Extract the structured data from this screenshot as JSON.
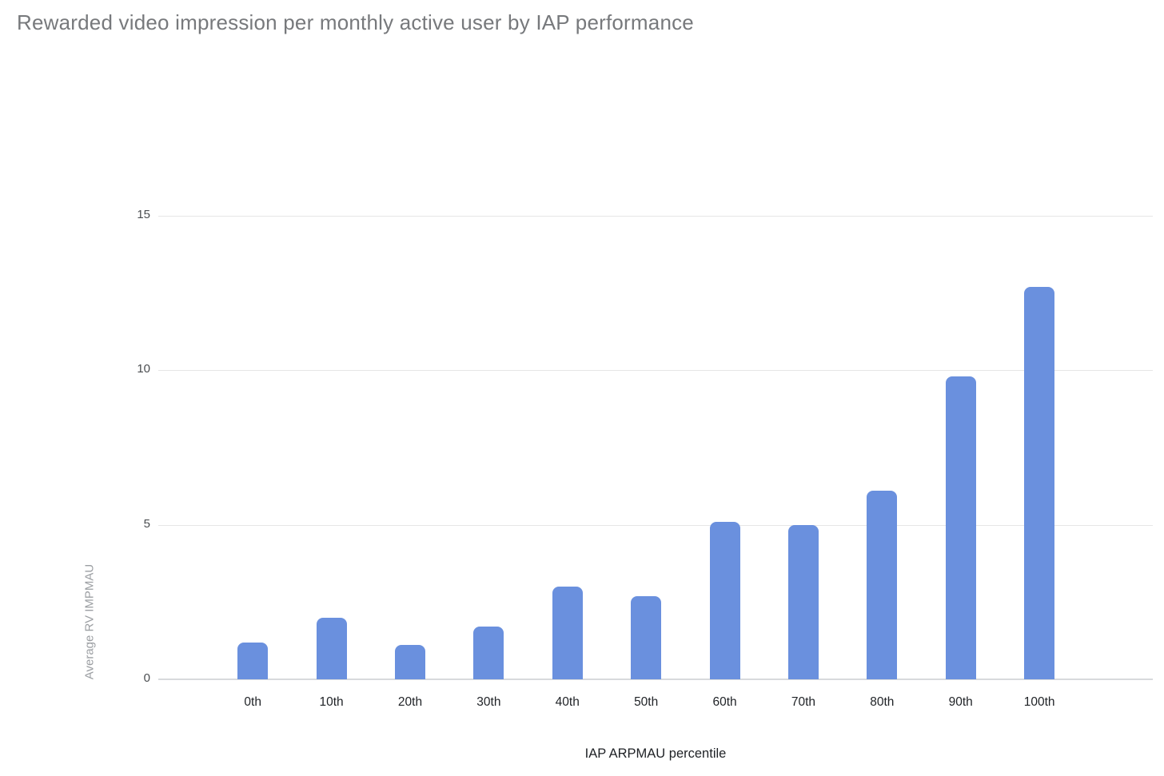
{
  "page": {
    "background": "#ffffff"
  },
  "chart_data": {
    "type": "bar",
    "title": "Rewarded video impression per monthly active user by IAP performance",
    "categories": [
      "0th",
      "10th",
      "20th",
      "30th",
      "40th",
      "50th",
      "60th",
      "70th",
      "80th",
      "90th",
      "100th"
    ],
    "values": [
      1.2,
      2.0,
      1.1,
      1.7,
      3.0,
      2.7,
      5.1,
      5.0,
      6.1,
      9.8,
      12.7
    ],
    "xlabel": "IAP ARPMAU percentile",
    "ylabel": "Average RV IMPMAU",
    "ylim": [
      0,
      15
    ],
    "yticks": [
      0,
      5,
      10,
      15
    ],
    "grid": true,
    "legend": false,
    "colors": {
      "bar": "#6a90de",
      "gridline": "#e6e6e6",
      "axis_line": "#d8dadc",
      "title": "#77797c",
      "x_tick_label": "#1f2226",
      "y_tick_label": "#4a4d50",
      "axis_title": "#202327",
      "y_axis_title": "#9b9ea2"
    }
  }
}
